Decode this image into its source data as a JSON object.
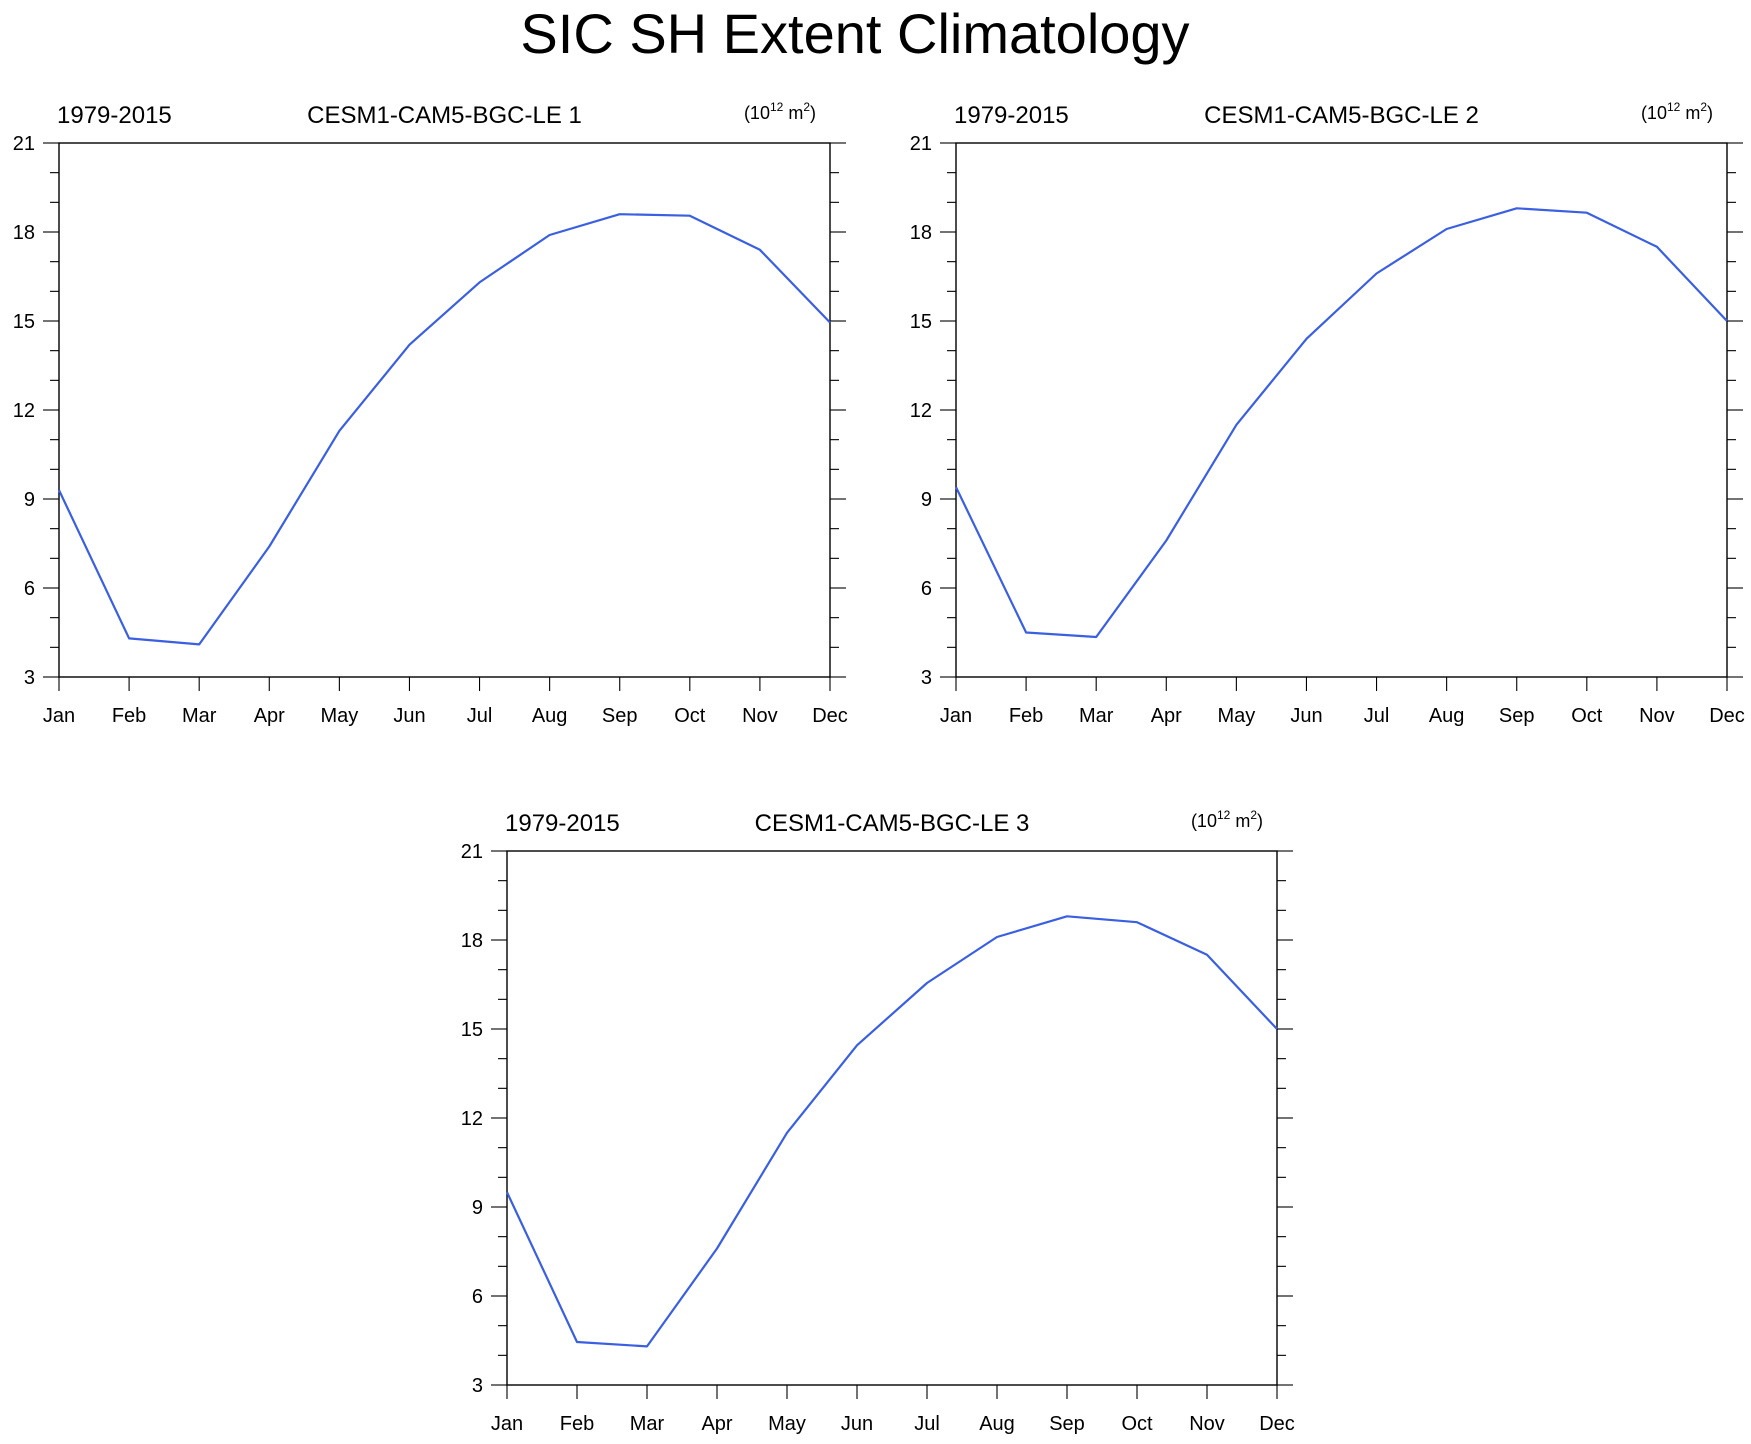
{
  "title": "SIC SH Extent Climatology",
  "line_color": "#3a5fe0",
  "chart_data": [
    {
      "type": "line",
      "left_label": "1979-2015",
      "center_label": "CESM1-CAM5-BGC-LE 1",
      "units": {
        "base": "(10",
        "exp": "12",
        "unit": " m",
        "unit_exp": "2",
        "close": ")"
      },
      "categories": [
        "Jan",
        "Feb",
        "Mar",
        "Apr",
        "May",
        "Jun",
        "Jul",
        "Aug",
        "Sep",
        "Oct",
        "Nov",
        "Dec"
      ],
      "values": [
        9.3,
        4.3,
        4.1,
        7.4,
        11.3,
        14.2,
        16.3,
        17.9,
        18.6,
        18.55,
        17.4,
        14.95
      ],
      "ylim": [
        3,
        21
      ],
      "yticks": [
        3,
        6,
        9,
        12,
        15,
        18,
        21
      ]
    },
    {
      "type": "line",
      "left_label": "1979-2015",
      "center_label": "CESM1-CAM5-BGC-LE 2",
      "units": {
        "base": "(10",
        "exp": "12",
        "unit": " m",
        "unit_exp": "2",
        "close": ")"
      },
      "categories": [
        "Jan",
        "Feb",
        "Mar",
        "Apr",
        "May",
        "Jun",
        "Jul",
        "Aug",
        "Sep",
        "Oct",
        "Nov",
        "Dec"
      ],
      "values": [
        9.4,
        4.5,
        4.35,
        7.6,
        11.5,
        14.4,
        16.6,
        18.1,
        18.8,
        18.65,
        17.5,
        15.0
      ],
      "ylim": [
        3,
        21
      ],
      "yticks": [
        3,
        6,
        9,
        12,
        15,
        18,
        21
      ]
    },
    {
      "type": "line",
      "left_label": "1979-2015",
      "center_label": "CESM1-CAM5-BGC-LE 3",
      "units": {
        "base": "(10",
        "exp": "12",
        "unit": " m",
        "unit_exp": "2",
        "close": ")"
      },
      "categories": [
        "Jan",
        "Feb",
        "Mar",
        "Apr",
        "May",
        "Jun",
        "Jul",
        "Aug",
        "Sep",
        "Oct",
        "Nov",
        "Dec"
      ],
      "values": [
        9.5,
        4.45,
        4.3,
        7.6,
        11.5,
        14.45,
        16.55,
        18.1,
        18.8,
        18.6,
        17.5,
        15.0
      ],
      "ylim": [
        3,
        21
      ],
      "yticks": [
        3,
        6,
        9,
        12,
        15,
        18,
        21
      ]
    }
  ]
}
